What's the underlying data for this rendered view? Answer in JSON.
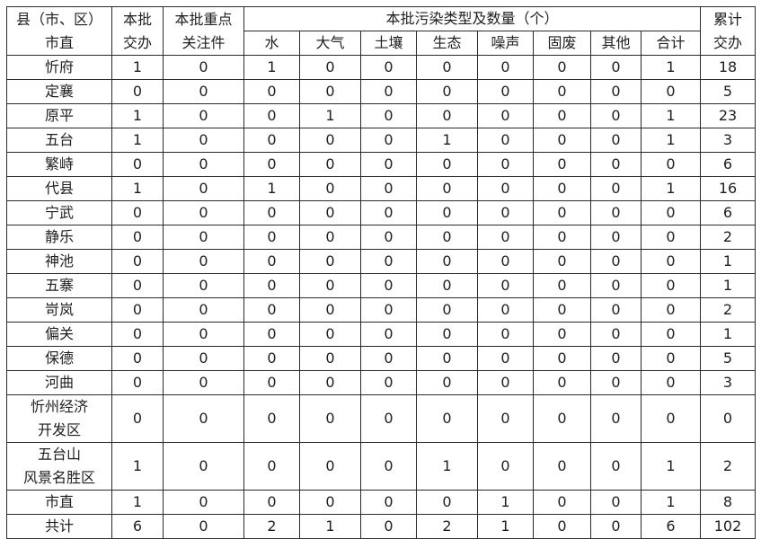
{
  "colors": {
    "border": "#2b2b2b",
    "text": "#1f1f1f",
    "background": "#ffffff"
  },
  "table": {
    "header": {
      "region": "县（市、区）\n市直",
      "batch_assigned": "本批\n交办",
      "key_items": "本批重点\n关注件",
      "pollution_group": "本批污染类型及数量（个）",
      "pollution_types": [
        "水",
        "大气",
        "土壤",
        "生态",
        "噪声",
        "固废",
        "其他",
        "合计"
      ],
      "cumulative": "累计\n交办"
    },
    "rows": [
      {
        "name": "忻府",
        "values": [
          1,
          0,
          1,
          0,
          0,
          0,
          0,
          0,
          0,
          1,
          18
        ]
      },
      {
        "name": "定襄",
        "values": [
          0,
          0,
          0,
          0,
          0,
          0,
          0,
          0,
          0,
          0,
          5
        ]
      },
      {
        "name": "原平",
        "values": [
          1,
          0,
          0,
          1,
          0,
          0,
          0,
          0,
          0,
          1,
          23
        ]
      },
      {
        "name": "五台",
        "values": [
          1,
          0,
          0,
          0,
          0,
          1,
          0,
          0,
          0,
          1,
          3
        ]
      },
      {
        "name": "繁峙",
        "values": [
          0,
          0,
          0,
          0,
          0,
          0,
          0,
          0,
          0,
          0,
          6
        ]
      },
      {
        "name": "代县",
        "values": [
          1,
          0,
          1,
          0,
          0,
          0,
          0,
          0,
          0,
          1,
          16
        ]
      },
      {
        "name": "宁武",
        "values": [
          0,
          0,
          0,
          0,
          0,
          0,
          0,
          0,
          0,
          0,
          6
        ]
      },
      {
        "name": "静乐",
        "values": [
          0,
          0,
          0,
          0,
          0,
          0,
          0,
          0,
          0,
          0,
          2
        ]
      },
      {
        "name": "神池",
        "values": [
          0,
          0,
          0,
          0,
          0,
          0,
          0,
          0,
          0,
          0,
          1
        ]
      },
      {
        "name": "五寨",
        "values": [
          0,
          0,
          0,
          0,
          0,
          0,
          0,
          0,
          0,
          0,
          1
        ]
      },
      {
        "name": "岢岚",
        "values": [
          0,
          0,
          0,
          0,
          0,
          0,
          0,
          0,
          0,
          0,
          2
        ]
      },
      {
        "name": "偏关",
        "values": [
          0,
          0,
          0,
          0,
          0,
          0,
          0,
          0,
          0,
          0,
          1
        ]
      },
      {
        "name": "保德",
        "values": [
          0,
          0,
          0,
          0,
          0,
          0,
          0,
          0,
          0,
          0,
          5
        ]
      },
      {
        "name": "河曲",
        "values": [
          0,
          0,
          0,
          0,
          0,
          0,
          0,
          0,
          0,
          0,
          3
        ]
      },
      {
        "name": "忻州经济\n开发区",
        "values": [
          0,
          0,
          0,
          0,
          0,
          0,
          0,
          0,
          0,
          0,
          0
        ]
      },
      {
        "name": "五台山\n风景名胜区",
        "values": [
          1,
          0,
          0,
          0,
          0,
          1,
          0,
          0,
          0,
          1,
          2
        ]
      },
      {
        "name": "市直",
        "values": [
          1,
          0,
          0,
          0,
          0,
          0,
          1,
          0,
          0,
          1,
          8
        ]
      },
      {
        "name": "共计",
        "values": [
          6,
          0,
          2,
          1,
          0,
          2,
          1,
          0,
          0,
          6,
          102
        ]
      }
    ]
  }
}
